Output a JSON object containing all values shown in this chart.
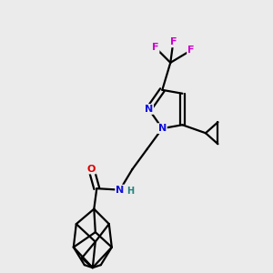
{
  "background_color": "#ebebeb",
  "fig_size": [
    3.0,
    3.0
  ],
  "dpi": 100,
  "colors": {
    "N": "#1010dd",
    "O": "#dd0000",
    "F": "#cc00cc",
    "C": "#000000",
    "H": "#208080",
    "bond": "#000000"
  }
}
